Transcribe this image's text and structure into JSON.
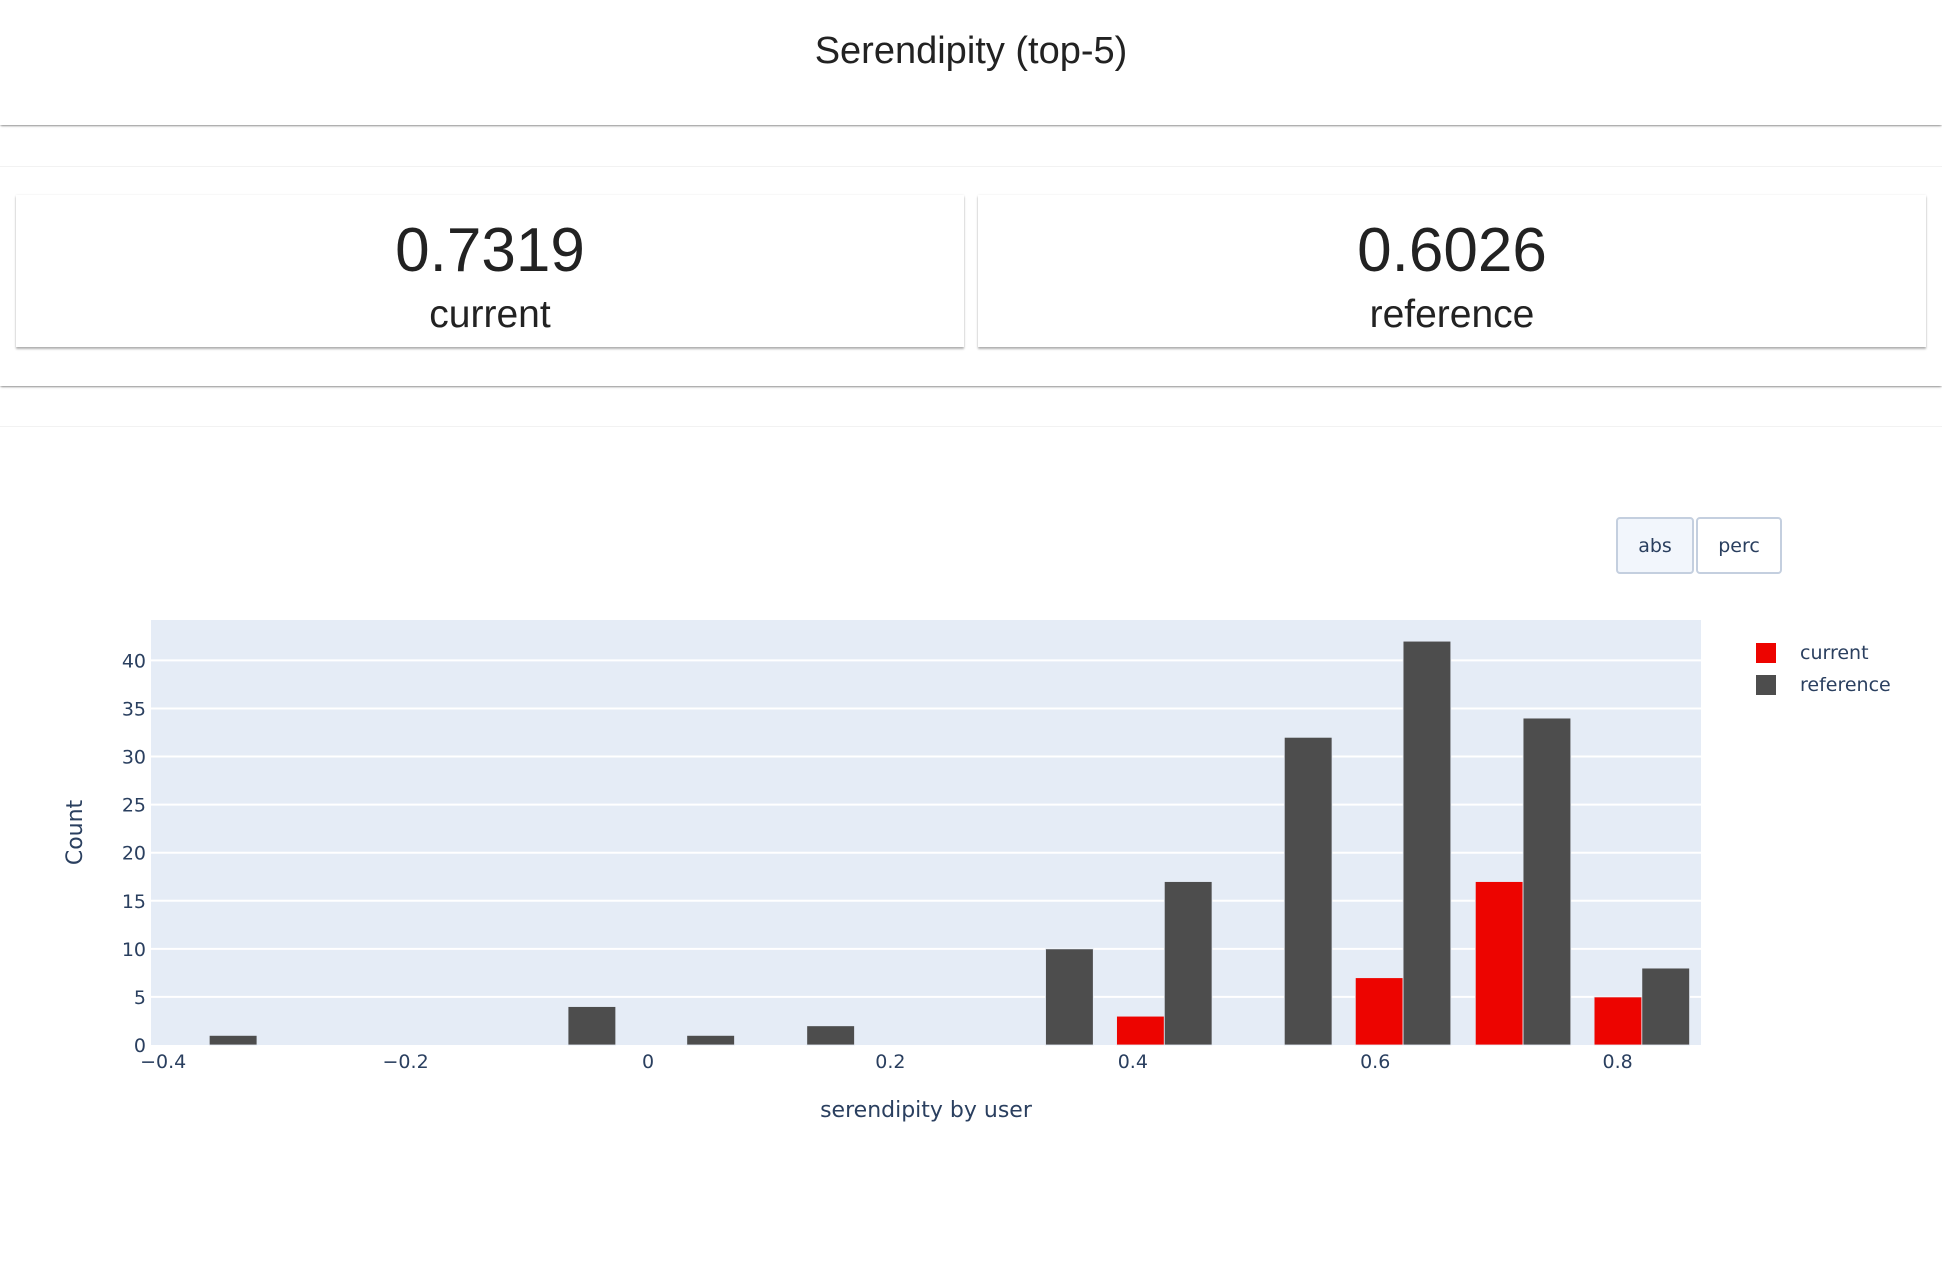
{
  "header": {
    "title": "Serendipity (top-5)"
  },
  "metrics": [
    {
      "value": "0.7319",
      "label": "current"
    },
    {
      "value": "0.6026",
      "label": "reference"
    }
  ],
  "toggle": {
    "abs_label": "abs",
    "perc_label": "perc",
    "active": "abs"
  },
  "legend": [
    {
      "label": "current",
      "color": "#ed0400"
    },
    {
      "label": "reference",
      "color": "#4d4d4d"
    }
  ],
  "chart_data": {
    "type": "bar",
    "title": "",
    "xlabel": "serendipity by user",
    "ylabel": "Count",
    "xlim": [
      -0.4,
      0.86
    ],
    "ylim": [
      0,
      44.2
    ],
    "grid": true,
    "legend_position": "right",
    "x_ticks": [
      -0.4,
      -0.2,
      0,
      0.2,
      0.4,
      0.6,
      0.8
    ],
    "x_tick_labels": [
      "−0.4",
      "−0.2",
      "0",
      "0.2",
      "0.4",
      "0.6",
      "0.8"
    ],
    "y_ticks": [
      0,
      5,
      10,
      15,
      20,
      25,
      30,
      35,
      40
    ],
    "bin_width": 0.0985,
    "bin_centers": [
      -0.362,
      -0.263,
      -0.165,
      -0.066,
      0.032,
      0.131,
      0.229,
      0.328,
      0.426,
      0.525,
      0.623,
      0.722,
      0.82
    ],
    "series": [
      {
        "name": "current",
        "color": "#ed0400",
        "values": [
          0,
          0,
          0,
          0,
          0,
          0,
          0,
          0,
          3,
          0,
          7,
          17,
          5
        ]
      },
      {
        "name": "reference",
        "color": "#4d4d4d",
        "values": [
          1,
          0,
          0,
          4,
          1,
          2,
          0,
          10,
          17,
          32,
          42,
          34,
          8
        ]
      }
    ]
  }
}
